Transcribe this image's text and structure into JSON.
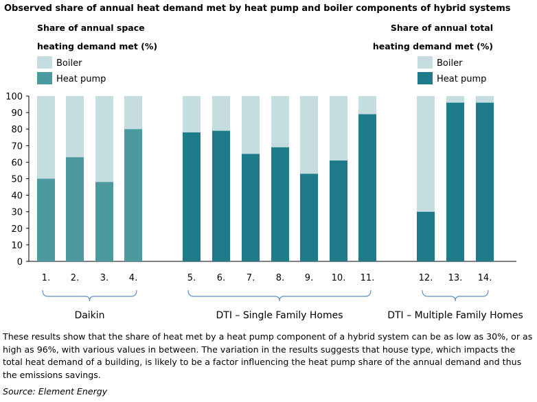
{
  "title": "Observed share of annual heat demand met by heat pump and boiler components of hybrid systems",
  "caption": "These results show that the share of heat met by a heat pump component of a hybrid system can be as low as 30%, or as high as 96%, with various values in between. The variation in the results suggests that house type, which impacts the total heat demand of a building, is likely to be a factor influencing the heat pump share of the annual demand and thus the emissions savings.",
  "source": "Source: Element Energy",
  "chart_data": {
    "type": "bar",
    "stacked": true,
    "ylim": [
      0,
      100
    ],
    "yticks": [
      "0",
      "10",
      "20",
      "30",
      "40",
      "50",
      "60",
      "70",
      "80",
      "90",
      "100"
    ],
    "grid": false,
    "legends": [
      {
        "title_line1": "Share of annual space",
        "title_line2": "heating demand met (%)",
        "items": [
          {
            "label": "Boiler",
            "color": "#c5dde1"
          },
          {
            "label": "Heat pump",
            "color": "#4b9aa0"
          }
        ]
      },
      {
        "title_line1": "Share of annual total",
        "title_line2": "heating demand met (%)",
        "items": [
          {
            "label": "Boiler",
            "color": "#c5dde1"
          },
          {
            "label": "Heat pump",
            "color": "#1e7b8a"
          }
        ]
      }
    ],
    "categories": [
      "1.",
      "2.",
      "3.",
      "4.",
      "5.",
      "6.",
      "7.",
      "8.",
      "9.",
      "10.",
      "11.",
      "12.",
      "13.",
      "14."
    ],
    "heat_pump": [
      50,
      63,
      48,
      80,
      78,
      79,
      65,
      69,
      53,
      61,
      89,
      30,
      96,
      96
    ],
    "boiler": [
      50,
      37,
      52,
      20,
      22,
      21,
      35,
      31,
      47,
      39,
      11,
      70,
      4,
      4
    ],
    "groups": [
      {
        "label": "Daikin",
        "start": 0,
        "end": 3,
        "hp_color": "#4b9aa0"
      },
      {
        "label": "DTI – Single Family Homes",
        "start": 4,
        "end": 10,
        "hp_color": "#1e7b8a"
      },
      {
        "label": "DTI – Multiple Family Homes",
        "start": 11,
        "end": 13,
        "hp_color": "#1e7b8a"
      }
    ],
    "boiler_color": "#c5dde1",
    "bracket_color": "#5b8fc7"
  }
}
